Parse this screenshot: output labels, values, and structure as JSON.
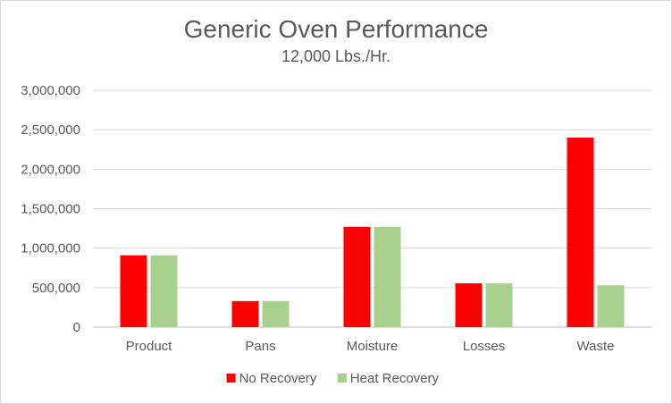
{
  "chart_data": {
    "type": "bar",
    "title": "Generic Oven Performance",
    "subtitle": "12,000 Lbs./Hr.",
    "xlabel": "",
    "ylabel": "",
    "categories": [
      "Product",
      "Pans",
      "Moisture",
      "Losses",
      "Waste"
    ],
    "series": [
      {
        "name": "No Recovery",
        "color": "#ff0000",
        "values": [
          910000,
          330000,
          1270000,
          555000,
          2400000
        ]
      },
      {
        "name": "Heat Recovery",
        "color": "#a9d18e",
        "values": [
          910000,
          330000,
          1270000,
          555000,
          530000
        ]
      }
    ],
    "ylim": [
      0,
      3000000
    ],
    "yticks": [
      0,
      500000,
      1000000,
      1500000,
      2000000,
      2500000,
      3000000
    ],
    "ytick_labels": [
      "0",
      "500,000",
      "1,000,000",
      "1,500,000",
      "2,000,000",
      "2,500,000",
      "3,000,000"
    ],
    "grid": true,
    "legend_position": "bottom"
  }
}
